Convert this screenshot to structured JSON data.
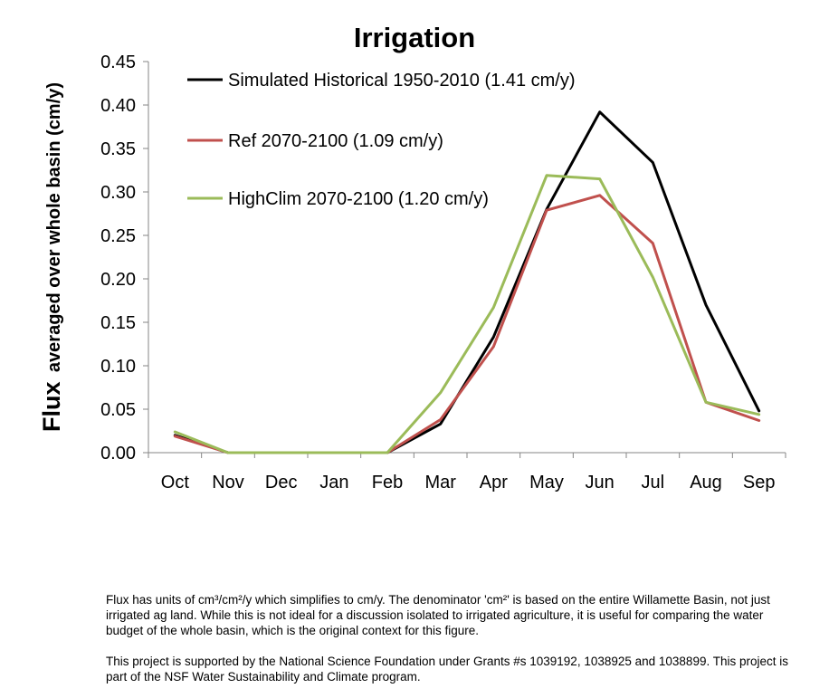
{
  "chart_data": {
    "type": "line",
    "title": "Irrigation",
    "ylabel_main": "Flux",
    "ylabel_sub": "averaged over whole basin (cm/y)",
    "xlabel": "",
    "categories": [
      "Oct",
      "Nov",
      "Dec",
      "Jan",
      "Feb",
      "Mar",
      "Apr",
      "May",
      "Jun",
      "Jul",
      "Aug",
      "Sep"
    ],
    "ylim": [
      0,
      0.45
    ],
    "yticks": [
      "0.00",
      "0.05",
      "0.10",
      "0.15",
      "0.20",
      "0.25",
      "0.30",
      "0.35",
      "0.40",
      "0.45"
    ],
    "grid": false,
    "legend_position": "top-left inside plot",
    "series": [
      {
        "name": "Simulated Historical 1950-2010 (1.41 cm/y)",
        "color": "#000000",
        "values": [
          0.02,
          0.0,
          0.0,
          0.0,
          0.0,
          0.033,
          0.133,
          0.28,
          0.392,
          0.334,
          0.17,
          0.048
        ]
      },
      {
        "name": "Ref 2070-2100 (1.09 cm/y)",
        "color": "#c0504d",
        "values": [
          0.019,
          0.0,
          0.0,
          0.0,
          0.0,
          0.038,
          0.122,
          0.279,
          0.296,
          0.241,
          0.058,
          0.037
        ]
      },
      {
        "name": "HighClim 2070-2100 (1.20 cm/y)",
        "color": "#9bbb59",
        "values": [
          0.024,
          0.0,
          0.0,
          0.0,
          0.0,
          0.069,
          0.167,
          0.319,
          0.315,
          0.202,
          0.058,
          0.044
        ]
      }
    ]
  },
  "notes": {
    "units": "Flux has units of cm³/cm²/y which simplifies to cm/y.  The denominator 'cm²' is based on the entire Willamette Basin, not just irrigated ag land.  While this is not ideal for a discussion isolated to irrigated agriculture, it is useful for comparing the water budget of the whole basin, which is the original context for this figure.",
    "funding": "This project is supported by the National Science Foundation under Grants #s 1039192, 1038925 and 1038899. This project is part of the NSF Water Sustainability and Climate program."
  }
}
